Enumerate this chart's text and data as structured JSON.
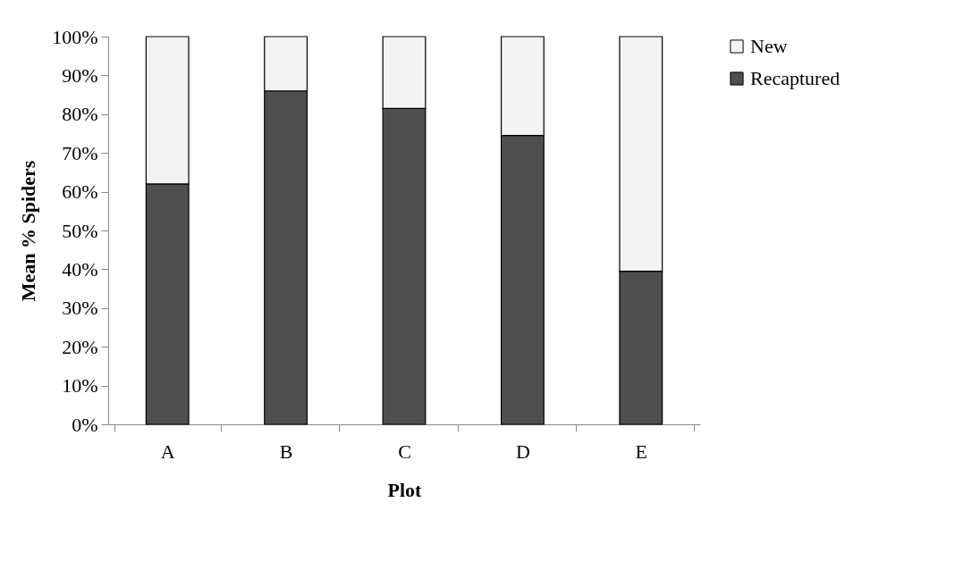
{
  "chart_data": {
    "type": "bar",
    "stacked": true,
    "xlabel": "Plot",
    "ylabel": "Mean % Spiders",
    "categories": [
      "A",
      "B",
      "C",
      "D",
      "E"
    ],
    "series": [
      {
        "name": "Recaptured",
        "color": "#4f4f4f",
        "values": [
          62,
          86,
          81.5,
          74.5,
          39.5
        ]
      },
      {
        "name": "New",
        "color": "#f3f3f3",
        "values": [
          38,
          14,
          18.5,
          25.5,
          60.5
        ]
      }
    ],
    "ylim": [
      0,
      100
    ],
    "yticks": [
      {
        "value": 0,
        "label": "0%"
      },
      {
        "value": 10,
        "label": "10%"
      },
      {
        "value": 20,
        "label": "20%"
      },
      {
        "value": 30,
        "label": "30%"
      },
      {
        "value": 40,
        "label": "40%"
      },
      {
        "value": 50,
        "label": "50%"
      },
      {
        "value": 60,
        "label": "60%"
      },
      {
        "value": 70,
        "label": "70%"
      },
      {
        "value": 80,
        "label": "80%"
      },
      {
        "value": 90,
        "label": "90%"
      },
      {
        "value": 100,
        "label": "100%"
      }
    ],
    "legend": "right",
    "grid": false
  }
}
